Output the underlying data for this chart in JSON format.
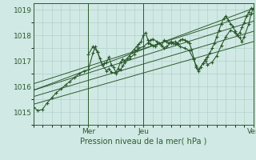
{
  "title": "",
  "xlabel": "Pression niveau de la mer( hPa )",
  "ylabel": "",
  "bg_color": "#d0e9e4",
  "grid_color": "#aaccc6",
  "line_color": "#2d5a2d",
  "text_color": "#2d5a2d",
  "ylim": [
    1014.75,
    1019.25
  ],
  "xlim": [
    0,
    96
  ],
  "yticks": [
    1015,
    1016,
    1017,
    1018,
    1019
  ],
  "xtick_positions": [
    24,
    48,
    96
  ],
  "xtick_labels": [
    "Mer",
    "Jeu",
    "Ven"
  ],
  "day_lines": [
    24,
    48,
    96
  ],
  "envelope_lines": [
    [
      [
        0,
        1015.85
      ],
      [
        96,
        1018.55
      ]
    ],
    [
      [
        0,
        1015.6
      ],
      [
        96,
        1018.15
      ]
    ],
    [
      [
        0,
        1015.3
      ],
      [
        96,
        1017.75
      ]
    ],
    [
      [
        0,
        1016.1
      ],
      [
        96,
        1018.85
      ]
    ],
    [
      [
        0,
        1015.85
      ],
      [
        96,
        1019.05
      ]
    ]
  ],
  "main_series": [
    [
      0,
      1015.2
    ],
    [
      2,
      1015.05
    ],
    [
      4,
      1015.1
    ],
    [
      6,
      1015.35
    ],
    [
      8,
      1015.55
    ],
    [
      10,
      1015.75
    ],
    [
      12,
      1015.9
    ],
    [
      14,
      1016.05
    ],
    [
      16,
      1016.2
    ],
    [
      18,
      1016.35
    ],
    [
      20,
      1016.5
    ],
    [
      22,
      1016.6
    ],
    [
      24,
      1016.65
    ],
    [
      26,
      1017.3
    ],
    [
      27,
      1017.55
    ],
    [
      28,
      1017.35
    ],
    [
      30,
      1016.85
    ],
    [
      32,
      1016.6
    ],
    [
      33,
      1016.7
    ],
    [
      34,
      1016.55
    ],
    [
      36,
      1016.5
    ],
    [
      38,
      1016.65
    ],
    [
      39,
      1016.8
    ],
    [
      40,
      1016.95
    ],
    [
      42,
      1017.1
    ],
    [
      44,
      1017.25
    ],
    [
      45,
      1017.4
    ],
    [
      46,
      1017.5
    ],
    [
      48,
      1017.55
    ],
    [
      50,
      1017.7
    ],
    [
      51,
      1017.8
    ],
    [
      52,
      1017.85
    ],
    [
      54,
      1017.75
    ],
    [
      56,
      1017.6
    ],
    [
      57,
      1017.5
    ],
    [
      58,
      1017.55
    ],
    [
      60,
      1017.7
    ],
    [
      62,
      1017.75
    ],
    [
      63,
      1017.65
    ],
    [
      64,
      1017.55
    ],
    [
      66,
      1017.5
    ],
    [
      68,
      1017.4
    ],
    [
      70,
      1017.05
    ],
    [
      71,
      1016.8
    ],
    [
      72,
      1016.65
    ],
    [
      74,
      1016.9
    ],
    [
      75,
      1017.0
    ],
    [
      76,
      1016.85
    ],
    [
      78,
      1016.95
    ],
    [
      80,
      1017.2
    ],
    [
      82,
      1017.6
    ],
    [
      84,
      1017.95
    ],
    [
      86,
      1018.2
    ],
    [
      88,
      1018.1
    ],
    [
      89,
      1018.0
    ],
    [
      90,
      1017.9
    ],
    [
      91,
      1017.75
    ],
    [
      92,
      1017.95
    ],
    [
      94,
      1018.45
    ],
    [
      95,
      1018.85
    ],
    [
      96,
      1019.05
    ]
  ],
  "upper_series": [
    [
      24,
      1017.25
    ],
    [
      26,
      1017.55
    ],
    [
      28,
      1017.35
    ],
    [
      29,
      1017.1
    ],
    [
      30,
      1016.85
    ],
    [
      31,
      1016.9
    ],
    [
      32,
      1016.95
    ],
    [
      33,
      1017.15
    ],
    [
      34,
      1016.85
    ],
    [
      35,
      1016.75
    ],
    [
      36,
      1016.55
    ],
    [
      37,
      1016.7
    ],
    [
      38,
      1016.95
    ],
    [
      39,
      1017.05
    ],
    [
      40,
      1017.0
    ],
    [
      41,
      1017.1
    ],
    [
      42,
      1017.2
    ],
    [
      43,
      1017.35
    ],
    [
      44,
      1017.45
    ],
    [
      45,
      1017.55
    ],
    [
      46,
      1017.65
    ],
    [
      47,
      1017.75
    ],
    [
      48,
      1018.0
    ],
    [
      49,
      1018.1
    ],
    [
      50,
      1017.8
    ],
    [
      51,
      1017.65
    ],
    [
      52,
      1017.6
    ],
    [
      53,
      1017.55
    ],
    [
      54,
      1017.65
    ],
    [
      55,
      1017.7
    ],
    [
      56,
      1017.6
    ],
    [
      57,
      1017.8
    ],
    [
      58,
      1017.75
    ],
    [
      59,
      1017.7
    ],
    [
      60,
      1017.75
    ],
    [
      61,
      1017.7
    ],
    [
      62,
      1017.65
    ],
    [
      63,
      1017.7
    ],
    [
      64,
      1017.8
    ],
    [
      65,
      1017.85
    ],
    [
      66,
      1017.8
    ],
    [
      67,
      1017.75
    ],
    [
      68,
      1017.7
    ],
    [
      69,
      1017.45
    ],
    [
      70,
      1017.1
    ],
    [
      71,
      1016.75
    ],
    [
      72,
      1016.6
    ],
    [
      73,
      1016.75
    ],
    [
      74,
      1016.9
    ],
    [
      75,
      1017.05
    ],
    [
      76,
      1017.15
    ],
    [
      77,
      1017.3
    ],
    [
      78,
      1017.5
    ],
    [
      79,
      1017.7
    ],
    [
      80,
      1017.95
    ],
    [
      81,
      1018.2
    ],
    [
      82,
      1018.45
    ],
    [
      83,
      1018.65
    ],
    [
      84,
      1018.75
    ],
    [
      85,
      1018.6
    ],
    [
      86,
      1018.45
    ],
    [
      87,
      1018.35
    ],
    [
      88,
      1018.15
    ],
    [
      89,
      1018.0
    ],
    [
      90,
      1018.1
    ],
    [
      91,
      1018.3
    ],
    [
      92,
      1018.5
    ],
    [
      93,
      1018.75
    ],
    [
      94,
      1018.9
    ],
    [
      95,
      1019.05
    ],
    [
      96,
      1019.0
    ]
  ]
}
